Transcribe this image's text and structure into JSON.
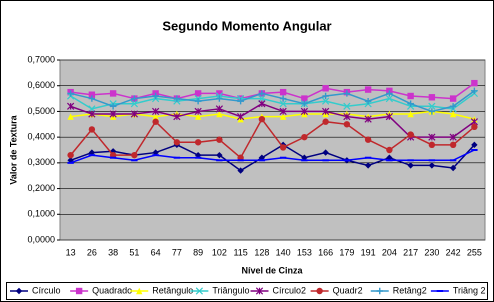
{
  "chart_data": {
    "type": "line",
    "title": "Segundo Momento Angular",
    "x_label": "Nível de Cinza",
    "y_label": "Valor de Textura",
    "categories": [
      13,
      26,
      38,
      51,
      64,
      77,
      89,
      102,
      115,
      128,
      140,
      153,
      166,
      179,
      191,
      204,
      217,
      230,
      242,
      255
    ],
    "ylim": [
      0,
      0.7
    ],
    "yticks": [
      {
        "value": 0,
        "label": "0,0000"
      },
      {
        "value": 0.1,
        "label": "0,1000"
      },
      {
        "value": 0.2,
        "label": "0,2000"
      },
      {
        "value": 0.3,
        "label": "0,3000"
      },
      {
        "value": 0.4,
        "label": "0,4000"
      },
      {
        "value": 0.5,
        "label": "0,5000"
      },
      {
        "value": 0.6,
        "label": "0,6000"
      },
      {
        "value": 0.7,
        "label": "0,7000"
      }
    ],
    "grid": true,
    "legend": "bottom",
    "series": [
      {
        "name": "Círculo",
        "color": "#000080",
        "marker": "diamond",
        "values": [
          0.31,
          0.34,
          0.345,
          0.33,
          0.34,
          0.37,
          0.33,
          0.33,
          0.27,
          0.32,
          0.37,
          0.32,
          0.34,
          0.31,
          0.29,
          0.32,
          0.29,
          0.29,
          0.28,
          0.37
        ]
      },
      {
        "name": "Quadrado",
        "color": "#cc33cc",
        "marker": "square",
        "values": [
          0.575,
          0.565,
          0.57,
          0.55,
          0.57,
          0.55,
          0.57,
          0.57,
          0.55,
          0.57,
          0.575,
          0.55,
          0.59,
          0.575,
          0.585,
          0.58,
          0.56,
          0.555,
          0.55,
          0.61
        ]
      },
      {
        "name": "Retângulo",
        "color": "#ffff00",
        "marker": "triangle",
        "values": [
          0.48,
          0.49,
          0.48,
          0.49,
          0.48,
          0.49,
          0.48,
          0.49,
          0.47,
          0.48,
          0.48,
          0.49,
          0.49,
          0.49,
          0.48,
          0.49,
          0.49,
          0.5,
          0.49,
          0.47
        ]
      },
      {
        "name": "Triângulo",
        "color": "#33cccc",
        "marker": "x",
        "values": [
          0.56,
          0.51,
          0.53,
          0.53,
          0.55,
          0.54,
          0.55,
          0.56,
          0.55,
          0.55,
          0.53,
          0.53,
          0.54,
          0.52,
          0.53,
          0.55,
          0.52,
          0.52,
          0.51,
          0.57
        ]
      },
      {
        "name": "Círculo2",
        "color": "#800080",
        "marker": "star",
        "values": [
          0.52,
          0.49,
          0.49,
          0.49,
          0.5,
          0.48,
          0.5,
          0.51,
          0.48,
          0.53,
          0.5,
          0.5,
          0.5,
          0.48,
          0.47,
          0.48,
          0.4,
          0.4,
          0.4,
          0.46
        ]
      },
      {
        "name": "Quadr2",
        "color": "#c0282c",
        "marker": "circle",
        "values": [
          0.33,
          0.43,
          0.33,
          0.33,
          0.46,
          0.38,
          0.38,
          0.39,
          0.32,
          0.47,
          0.36,
          0.4,
          0.46,
          0.45,
          0.39,
          0.35,
          0.41,
          0.37,
          0.37,
          0.44
        ]
      },
      {
        "name": "Retâng2",
        "color": "#3399cc",
        "marker": "plus",
        "values": [
          0.57,
          0.55,
          0.52,
          0.55,
          0.56,
          0.55,
          0.54,
          0.55,
          0.54,
          0.57,
          0.55,
          0.53,
          0.56,
          0.57,
          0.54,
          0.57,
          0.53,
          0.5,
          0.52,
          0.58
        ]
      },
      {
        "name": "Triâng 2",
        "color": "#0000ff",
        "marker": "dash",
        "values": [
          0.3,
          0.33,
          0.32,
          0.31,
          0.33,
          0.32,
          0.32,
          0.31,
          0.31,
          0.31,
          0.32,
          0.31,
          0.31,
          0.31,
          0.32,
          0.31,
          0.31,
          0.31,
          0.31,
          0.35
        ]
      }
    ]
  }
}
